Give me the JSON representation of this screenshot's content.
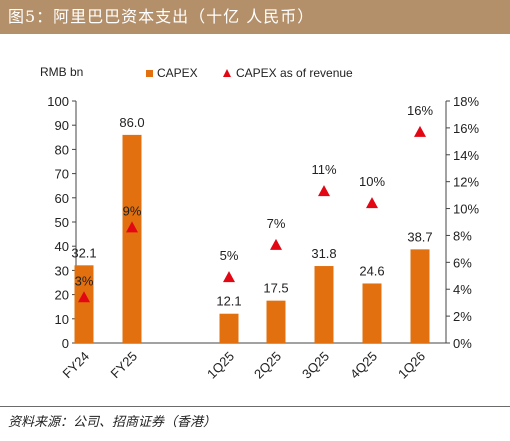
{
  "header": {
    "title": "图5：阿里巴巴资本支出（十亿 人民币）"
  },
  "footer": {
    "source": "资料来源：公司、招商证券（香港）"
  },
  "colors": {
    "header_bg": "#b4906a",
    "bar": "#e2700f",
    "marker": "#e30613",
    "axis": "#444444"
  },
  "chart_data": {
    "type": "bar",
    "ylabel": "RMB bn",
    "ylim": [
      0,
      100
    ],
    "yticks": [
      0,
      10,
      20,
      30,
      40,
      50,
      60,
      70,
      80,
      90,
      100
    ],
    "y2lim": [
      0,
      18
    ],
    "y2ticks": [
      "0%",
      "2%",
      "4%",
      "6%",
      "8%",
      "10%",
      "12%",
      "14%",
      "16%",
      "18%"
    ],
    "legend_position": "top",
    "categories": [
      "FY24",
      "FY25",
      "1Q25",
      "2Q25",
      "3Q25",
      "4Q25",
      "1Q26"
    ],
    "series": [
      {
        "name": "CAPEX",
        "kind": "bar",
        "axis": "left",
        "values": [
          32.1,
          86.0,
          12.1,
          17.5,
          31.8,
          24.6,
          38.7
        ],
        "labels": [
          "32.1",
          "86.0",
          "12.1",
          "17.5",
          "31.8",
          "24.6",
          "38.7"
        ]
      },
      {
        "name": "CAPEX as of revenue",
        "kind": "marker",
        "axis": "right",
        "values": [
          3.4,
          8.6,
          4.9,
          7.3,
          11.3,
          10.4,
          15.7
        ],
        "labels": [
          "3%",
          "9%",
          "5%",
          "7%",
          "11%",
          "10%",
          "16%"
        ]
      }
    ]
  }
}
